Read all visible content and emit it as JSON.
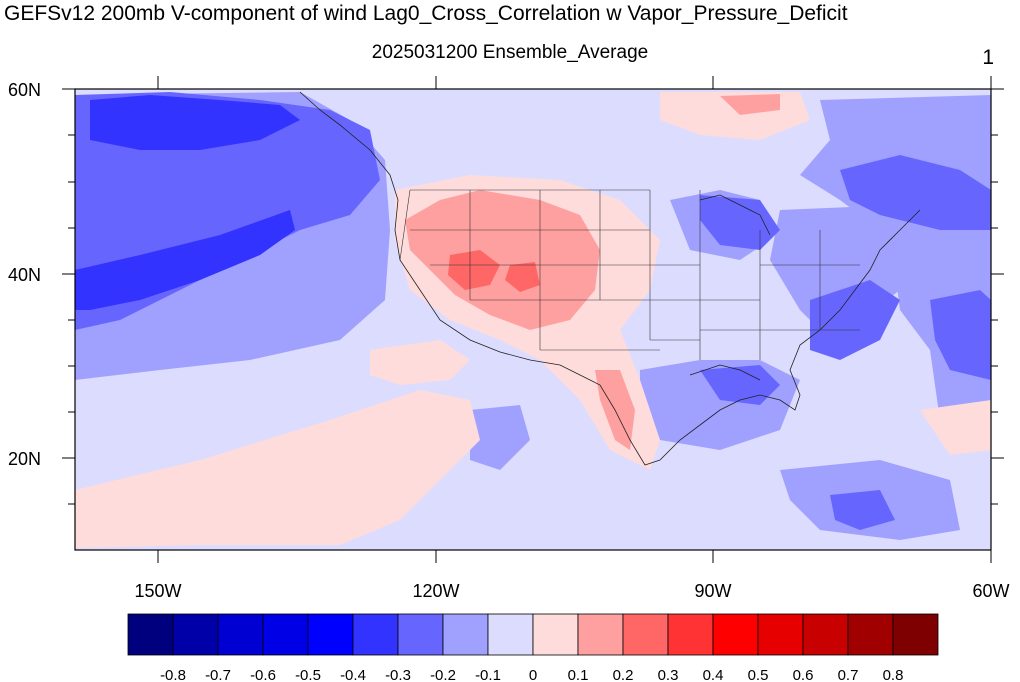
{
  "header": {
    "title": "GEFSv12 200mb V-component of wind Lag0_Cross_Correlation w Vapor_Pressure_Deficit",
    "subtitle": "2025031200 Ensemble_Average",
    "panel_number": "1"
  },
  "axes": {
    "lat_labels": [
      "60N",
      "40N",
      "20N"
    ],
    "lon_labels": [
      "150W",
      "120W",
      "90W",
      "60W"
    ]
  },
  "colorbar": {
    "colors": [
      "#00007f",
      "#0000a9",
      "#0000d2",
      "#0000e6",
      "#0000ff",
      "#3333ff",
      "#6666ff",
      "#a0a0ff",
      "#dcdcff",
      "#ffdcdc",
      "#ffa0a0",
      "#ff6666",
      "#ff3333",
      "#ff0000",
      "#e60000",
      "#c80000",
      "#a00000",
      "#7f0000"
    ],
    "labels": [
      "-0.8",
      "-0.7",
      "-0.6",
      "-0.5",
      "-0.4",
      "-0.3",
      "-0.2",
      "-0.1",
      "0",
      "0.1",
      "0.2",
      "0.3",
      "0.4",
      "0.5",
      "0.6",
      "0.7",
      "0.8"
    ]
  }
}
